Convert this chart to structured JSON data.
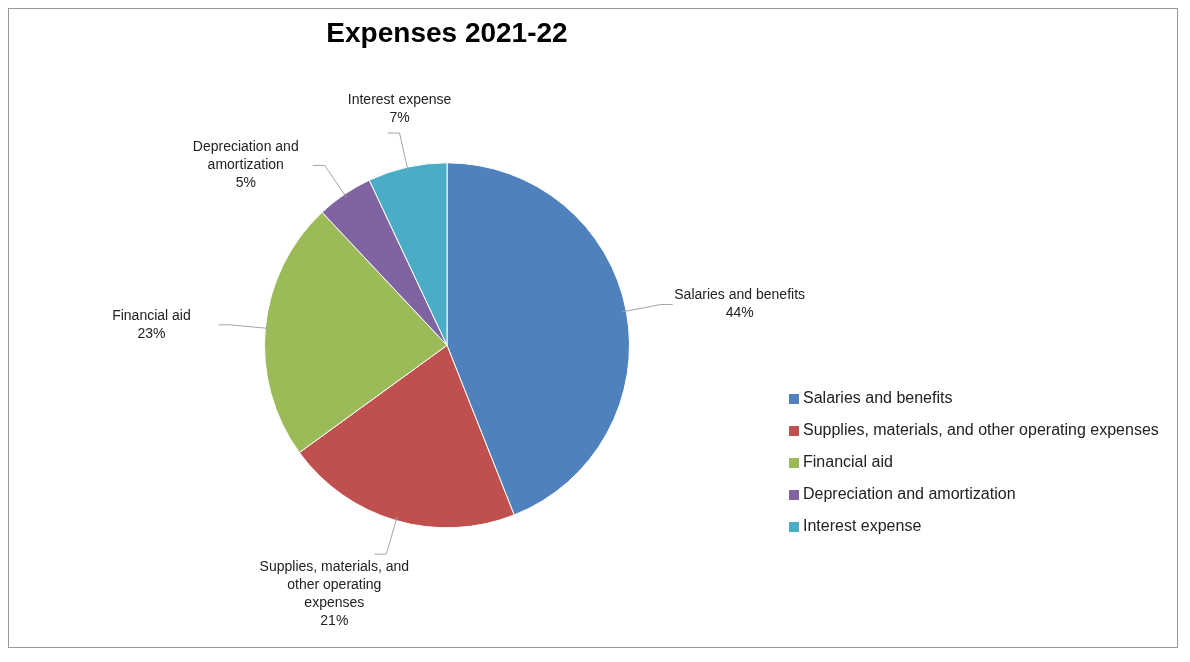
{
  "chart_data": {
    "type": "pie",
    "title": "Expenses 2021-22",
    "categories": [
      "Salaries and benefits",
      "Supplies, materials, and other operating expenses",
      "Financial aid",
      "Depreciation and amortization",
      "Interest expense"
    ],
    "values": [
      44,
      21,
      23,
      5,
      7
    ],
    "colors": [
      "#4f81bd",
      "#c0504d",
      "#9bbb59",
      "#8064a2",
      "#4bacc6"
    ],
    "value_labels": [
      "44%",
      "21%",
      "23%",
      "5%",
      "7%"
    ],
    "legend": "right"
  }
}
